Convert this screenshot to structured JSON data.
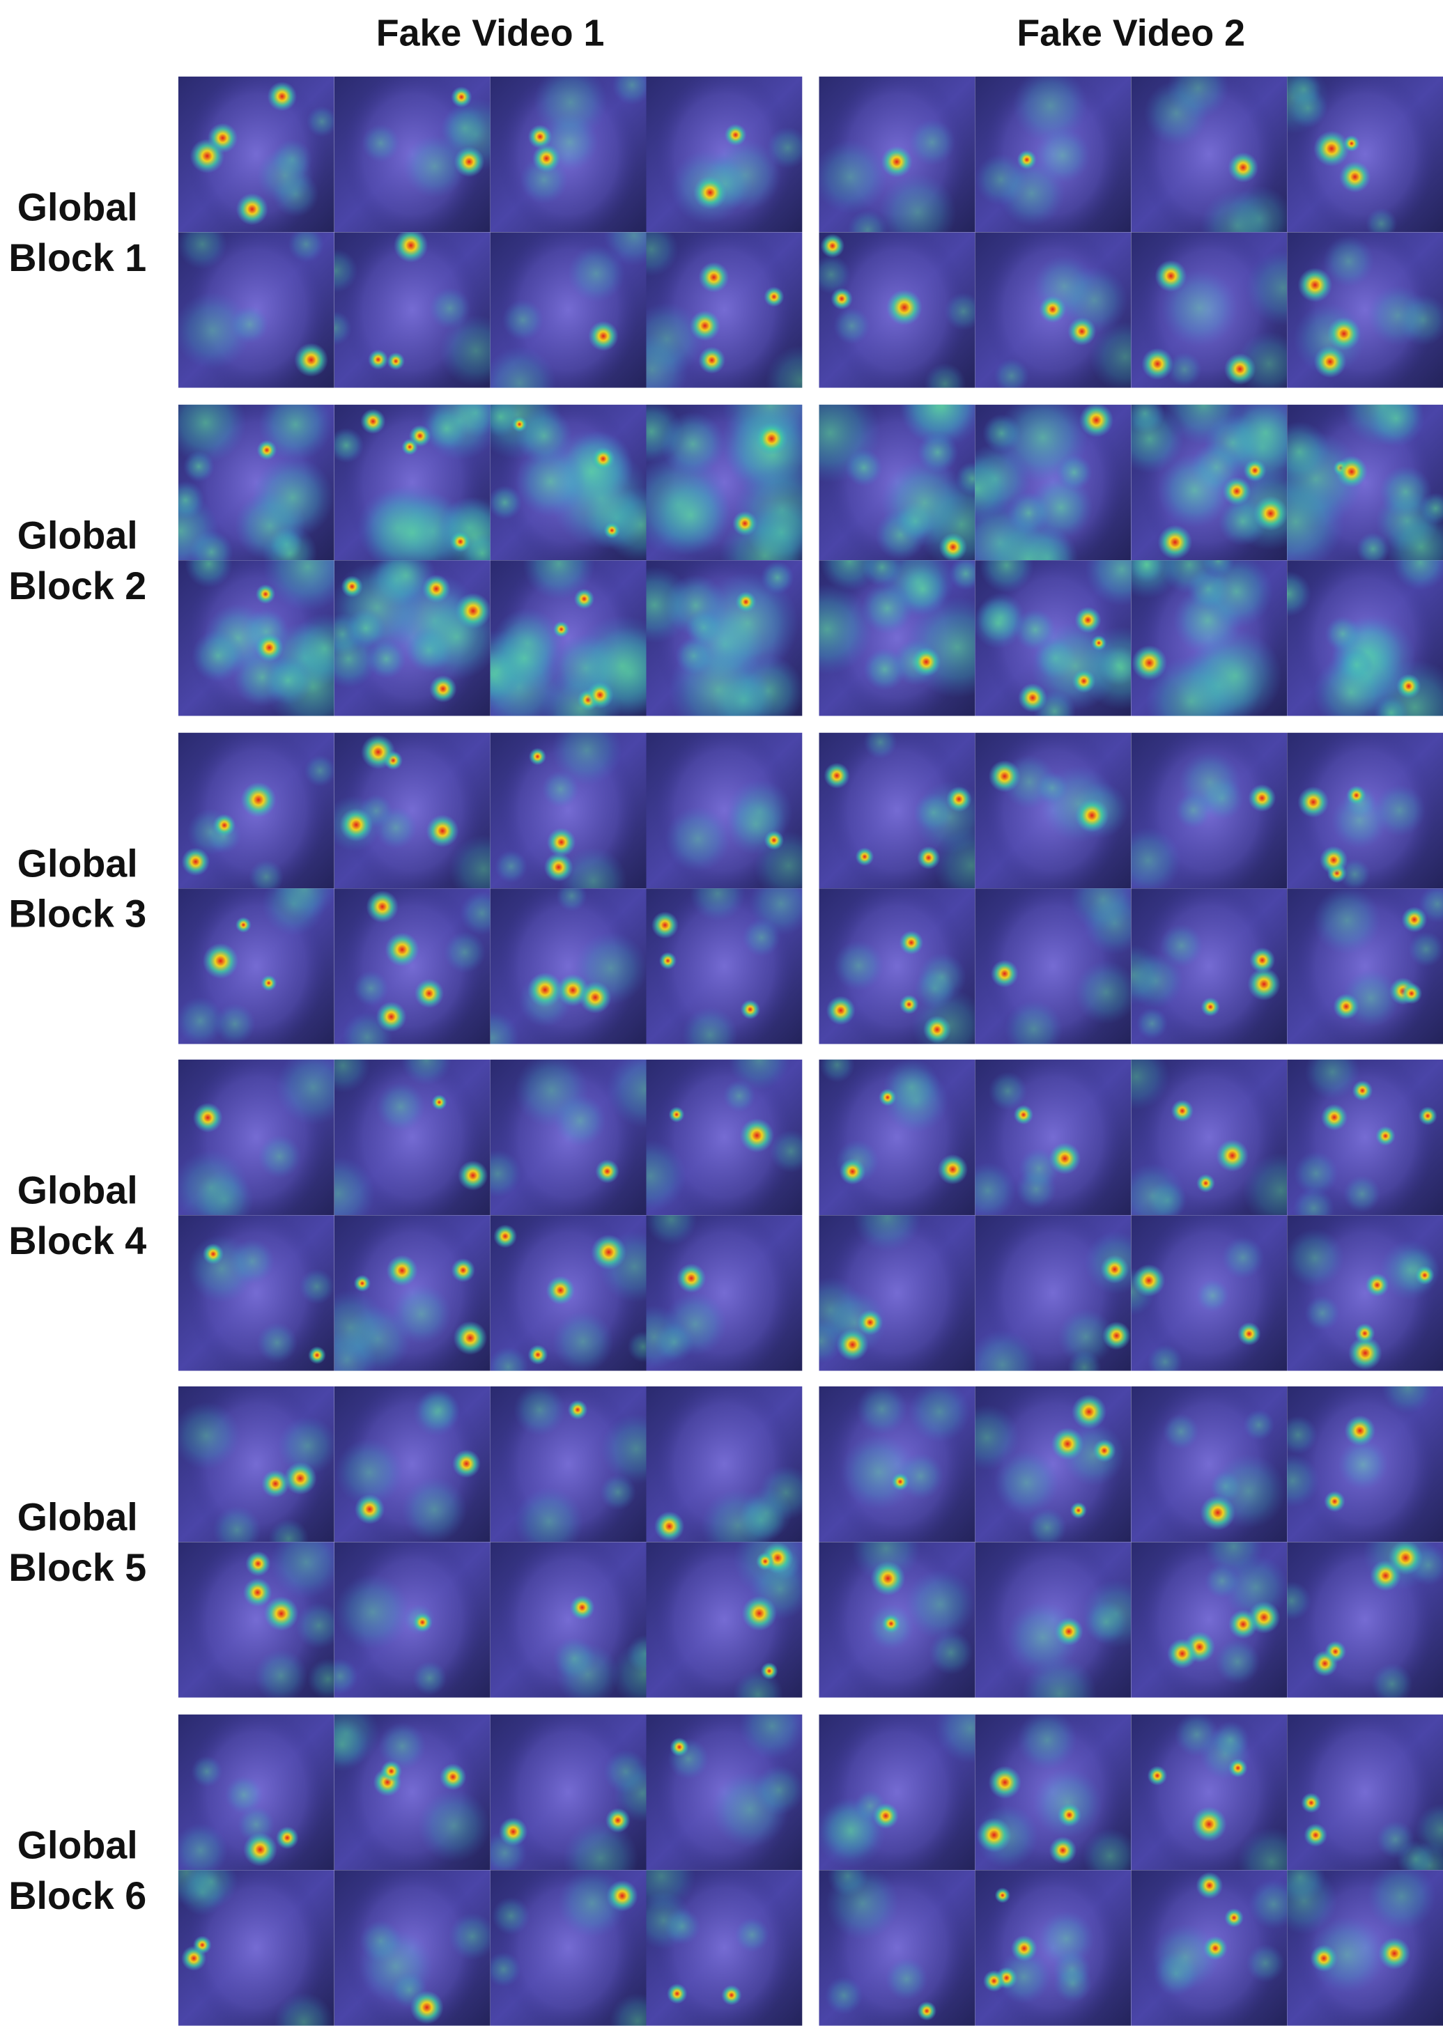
{
  "header": {
    "columns": [
      "Fake Video 1",
      "Fake Video 2"
    ]
  },
  "rows": [
    [
      "Global",
      "Block 1"
    ],
    [
      "Global",
      "Block 2"
    ],
    [
      "Global",
      "Block 3"
    ],
    [
      "Global",
      "Block 4"
    ],
    [
      "Global",
      "Block 5"
    ],
    [
      "Global",
      "Block 6"
    ]
  ]
}
